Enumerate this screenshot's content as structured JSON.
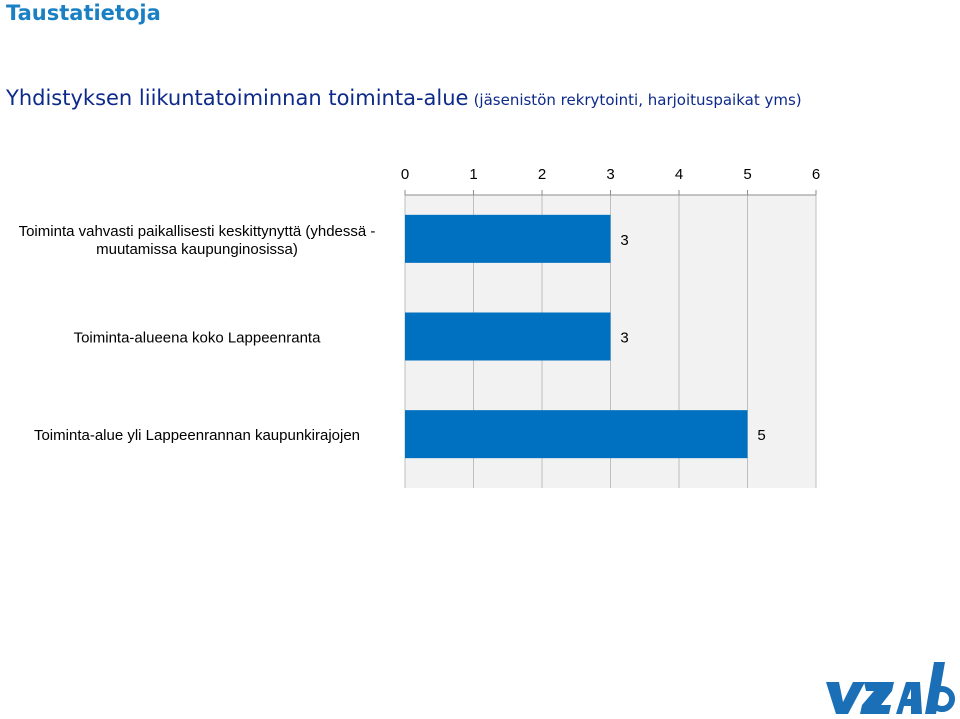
{
  "header": {
    "title": "Taustatietoja",
    "subtitle": "Yhdistyksen liikuntatoiminnan toiminta-alue",
    "subtitle_note": "(jäsenistön rekrytointi, harjoituspaikat yms)"
  },
  "chart_data": {
    "type": "bar",
    "orientation": "horizontal",
    "categories": [
      [
        "Toiminta vahvasti paikallisesti keskittynyttä (yhdessä -",
        "muutamissa kaupunginosissa)"
      ],
      [
        "Toiminta-alueena koko Lappeenranta"
      ],
      [
        "Toiminta-alue yli Lappeenrannan kaupunkirajojen"
      ]
    ],
    "values": [
      3,
      3,
      5
    ],
    "xlim": [
      0,
      6
    ],
    "xticks": [
      0,
      1,
      2,
      3,
      4,
      5,
      6
    ],
    "axis_position": "top",
    "grid": true,
    "data_labels": true,
    "bar_color": "#0070C0",
    "plot_background": "#F2F2F2",
    "grid_color": "#BFBFBF"
  },
  "brand": {
    "logo_text": "vzalo",
    "color": "#1A6FB6"
  },
  "colors": {
    "title": "#1B80C3",
    "subtitle": "#0D2A8A",
    "subtitle_note": "#0D2A8A",
    "text": "#000000"
  }
}
